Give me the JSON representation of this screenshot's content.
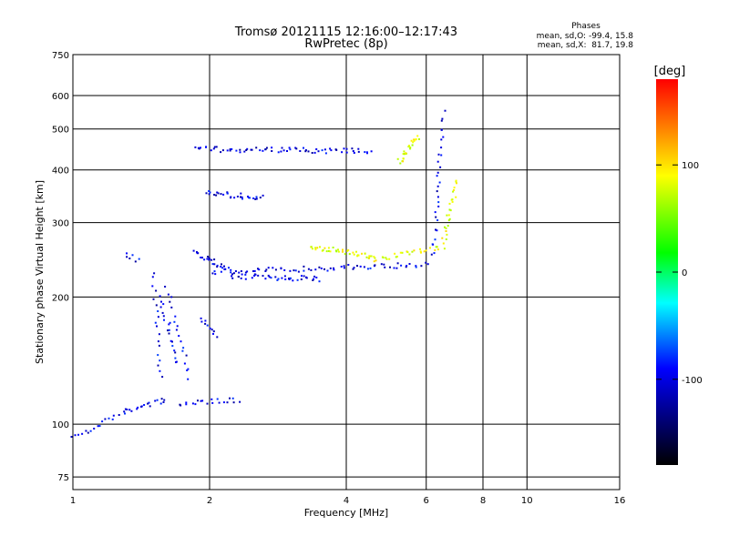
{
  "chart_data": {
    "type": "scatter",
    "title": "Tromsø 20121115 12:16:00–12:17:43",
    "subtitle": "RwPretec (8p)",
    "xlabel": "Frequency [MHz]",
    "ylabel": "Stationary phase Virtual Height [km]",
    "xscale": "log",
    "yscale": "log",
    "xlim": [
      1,
      16
    ],
    "ylim": [
      70,
      750
    ],
    "xticks": [
      1,
      2,
      4,
      6,
      8,
      10,
      16
    ],
    "yticks": [
      75,
      100,
      200,
      300,
      400,
      500,
      600,
      750
    ],
    "grid": true,
    "info": {
      "heading": "Phases",
      "line1": "mean, sd,O: -99.4, 15.8",
      "line2": "mean, sd,X:  81.7, 19.8"
    },
    "colorbar": {
      "label": "[deg]",
      "range": [
        -180,
        180
      ],
      "ticks": [
        100,
        0,
        -100
      ],
      "colors": [
        "#ff0000",
        "#ffff00",
        "#00ff00",
        "#00ffff",
        "#0000ff",
        "#000000"
      ]
    },
    "series": [
      {
        "mode": "O",
        "phase": -100,
        "segments": [
          {
            "from": [
              1.0,
              95
            ],
            "to": [
              1.1,
              97
            ],
            "n": 8
          },
          {
            "from": [
              1.12,
              100
            ],
            "to": [
              1.3,
              107
            ],
            "n": 10
          },
          {
            "from": [
              1.3,
              108
            ],
            "to": [
              1.6,
              115
            ],
            "n": 18
          },
          {
            "from": [
              1.3,
              255
            ],
            "to": [
              1.38,
              245
            ],
            "n": 6
          },
          {
            "from": [
              1.5,
              230
            ],
            "to": [
              1.55,
              130
            ],
            "n": 18
          },
          {
            "from": [
              1.55,
              200
            ],
            "to": [
              1.7,
              140
            ],
            "n": 20
          },
          {
            "from": [
              1.6,
              210
            ],
            "to": [
              1.8,
              130
            ],
            "n": 18
          },
          {
            "from": [
              1.9,
              180
            ],
            "to": [
              2.05,
              160
            ],
            "n": 10
          },
          {
            "from": [
              1.7,
              112
            ],
            "to": [
              2.3,
              115
            ],
            "n": 20
          },
          {
            "from": [
              1.85,
              255
            ],
            "to": [
              2.2,
              235
            ],
            "n": 25
          },
          {
            "from": [
              2.0,
              230
            ],
            "to": [
              6.0,
              240
            ],
            "n": 70
          },
          {
            "from": [
              2.2,
              225
            ],
            "to": [
              3.5,
              222
            ],
            "n": 40
          },
          {
            "from": [
              1.85,
              450
            ],
            "to": [
              4.5,
              445
            ],
            "n": 70
          },
          {
            "from": [
              1.95,
              355
            ],
            "to": [
              2.6,
              345
            ],
            "n": 30
          },
          {
            "from": [
              6.2,
              250
            ],
            "to": [
              6.5,
              550
            ],
            "n": 30
          }
        ]
      },
      {
        "mode": "X",
        "phase": 80,
        "segments": [
          {
            "from": [
              3.3,
              265
            ],
            "to": [
              4.6,
              250
            ],
            "n": 40
          },
          {
            "from": [
              4.5,
              245
            ],
            "to": [
              6.5,
              265
            ],
            "n": 30
          },
          {
            "from": [
              6.5,
              270
            ],
            "to": [
              7.0,
              380
            ],
            "n": 25
          },
          {
            "from": [
              5.2,
              420
            ],
            "to": [
              5.7,
              480
            ],
            "n": 25
          }
        ]
      }
    ]
  }
}
